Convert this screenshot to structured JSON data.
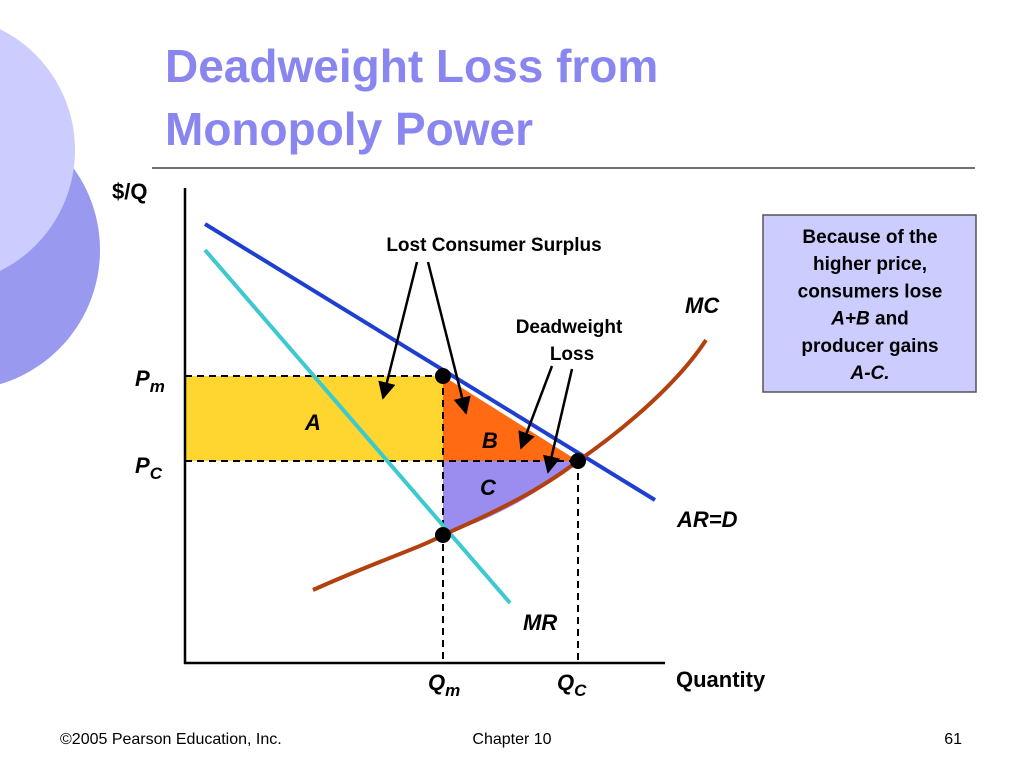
{
  "header": {
    "title_lines": [
      "Deadweight Loss from",
      "Monopoly Power"
    ]
  },
  "diagram": {
    "y_axis_label": "$/Q",
    "x_axis_label": "Quantity",
    "pm": {
      "main": "P",
      "sub": "m"
    },
    "pc": {
      "main": "P",
      "sub": "C"
    },
    "qm": {
      "main": "Q",
      "sub": "m"
    },
    "qc": {
      "main": "Q",
      "sub": "C"
    },
    "area_a": "A",
    "area_b": "B",
    "area_c": "C",
    "mc_label": "MC",
    "demand_label": "AR=D",
    "mr_label": "MR",
    "lost_cs_label": "Lost Consumer Surplus",
    "deadweight_label_lines": [
      "Deadweight",
      "Loss"
    ],
    "note_lines": [
      [
        "Because of the"
      ],
      [
        "higher price,"
      ],
      [
        "consumers lose"
      ],
      [
        {
          "text": "A+B",
          "italic": true
        },
        " and"
      ],
      [
        "producer gains"
      ],
      [
        {
          "text": "A-C.",
          "italic": true
        }
      ]
    ]
  },
  "footer": {
    "copyright": "©2005 Pearson Education, Inc.",
    "chapter": "Chapter 10",
    "page": "61"
  }
}
